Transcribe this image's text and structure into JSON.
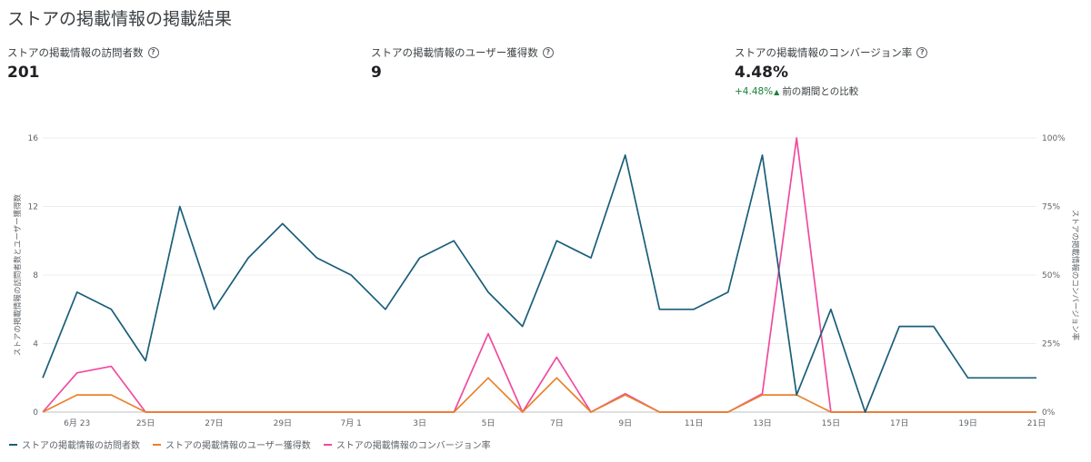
{
  "title": "ストアの掲載情報の掲載結果",
  "metrics": [
    {
      "label": "ストアの掲載情報の訪問者数",
      "value": "201"
    },
    {
      "label": "ストアの掲載情報のユーザー獲得数",
      "value": "9"
    },
    {
      "label": "ストアの掲載情報のコンバージョン率",
      "value": "4.48%",
      "compare_value": "+4.48%",
      "compare_text": "前の期間との比較"
    }
  ],
  "help_icon": "help-circle-icon",
  "colors": {
    "visitors": "#1a5e7a",
    "acquisitions": "#e8822a",
    "conversion": "#f04aa0",
    "positive": "#188038"
  },
  "chart_data": {
    "type": "line",
    "x": [
      "6月22日",
      "6月23日",
      "6月24日",
      "6月25日",
      "6月26日",
      "6月27日",
      "6月28日",
      "6月29日",
      "6月30日",
      "7月1日",
      "7月2日",
      "7月3日",
      "7月4日",
      "7月5日",
      "7月6日",
      "7月7日",
      "7月8日",
      "7月9日",
      "7月10日",
      "7月11日",
      "7月12日",
      "7月13日",
      "7月14日",
      "7月15日",
      "7月16日",
      "7月17日",
      "7月18日",
      "7月19日",
      "7月20日",
      "7月21日"
    ],
    "tick_labels": [
      {
        "index": 1,
        "label": "6月 23"
      },
      {
        "index": 3,
        "label": "25日"
      },
      {
        "index": 5,
        "label": "27日"
      },
      {
        "index": 7,
        "label": "29日"
      },
      {
        "index": 9,
        "label": "7月 1"
      },
      {
        "index": 11,
        "label": "3日"
      },
      {
        "index": 13,
        "label": "5日"
      },
      {
        "index": 15,
        "label": "7日"
      },
      {
        "index": 17,
        "label": "9日"
      },
      {
        "index": 19,
        "label": "11日"
      },
      {
        "index": 21,
        "label": "13日"
      },
      {
        "index": 23,
        "label": "15日"
      },
      {
        "index": 25,
        "label": "17日"
      },
      {
        "index": 27,
        "label": "19日"
      },
      {
        "index": 29,
        "label": "21日"
      }
    ],
    "y_left": {
      "label": "ストアの掲載情報の訪問者数とユーザー獲得数",
      "ticks": [
        "0",
        "4",
        "8",
        "12",
        "16"
      ],
      "range": [
        0,
        16
      ]
    },
    "y_right": {
      "label": "ストアの掲載情報のコンバージョン率",
      "ticks": [
        "0%",
        "25%",
        "50%",
        "75%",
        "100%"
      ],
      "range": [
        0,
        100
      ]
    },
    "series": [
      {
        "name": "ストアの掲載情報の訪問者数",
        "axis": "left",
        "color": "#1a5e7a",
        "values": [
          2,
          7,
          6,
          3,
          12,
          6,
          9,
          11,
          9,
          8,
          6,
          9,
          10,
          7,
          5,
          10,
          9,
          15,
          6,
          6,
          7,
          15,
          1,
          6,
          0,
          5,
          5,
          2,
          2,
          2
        ]
      },
      {
        "name": "ストアの掲載情報のユーザー獲得数",
        "axis": "left",
        "color": "#e8822a",
        "values": [
          0,
          1,
          1,
          0,
          0,
          0,
          0,
          0,
          0,
          0,
          0,
          0,
          0,
          2,
          0,
          2,
          0,
          1,
          0,
          0,
          0,
          1,
          1,
          0,
          0,
          0,
          0,
          0,
          0,
          0
        ]
      },
      {
        "name": "ストアの掲載情報のコンバージョン率",
        "axis": "right",
        "color": "#f04aa0",
        "values": [
          0,
          14.3,
          16.7,
          0,
          0,
          0,
          0,
          0,
          0,
          0,
          0,
          0,
          0,
          28.6,
          0,
          20,
          0,
          6.7,
          0,
          0,
          0,
          6.7,
          100,
          0,
          0,
          0,
          0,
          0,
          0,
          0
        ]
      }
    ],
    "grid": true,
    "legend_position": "bottom-left"
  }
}
